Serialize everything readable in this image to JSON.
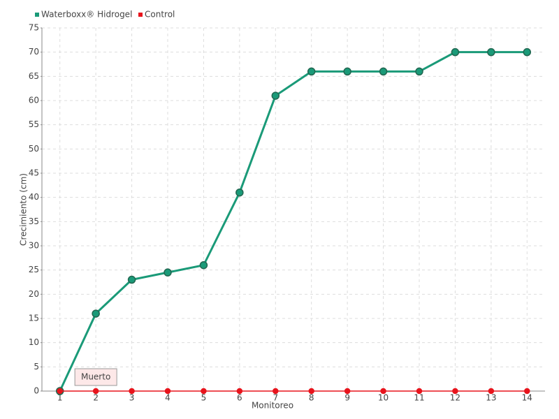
{
  "chart_data": {
    "type": "line",
    "x_label": "Monitoreo",
    "y_label": "Crecimiento (cm)",
    "categories": [
      "1",
      "2",
      "3",
      "4",
      "5",
      "6",
      "7",
      "8",
      "9",
      "10",
      "11",
      "12",
      "13",
      "14"
    ],
    "series": [
      {
        "name": "Waterboxx® Hidrogel",
        "color": "#1a9a78",
        "values": [
          0,
          16,
          23,
          24.5,
          26,
          41,
          61,
          66,
          66,
          66,
          66,
          70,
          70,
          70
        ]
      },
      {
        "name": "Control",
        "color": "#e8141c",
        "values": [
          0,
          0,
          0,
          0,
          0,
          0,
          0,
          0,
          0,
          0,
          0,
          0,
          0,
          0
        ]
      }
    ],
    "annotation": {
      "text": "Muerto",
      "category": "2"
    },
    "ylim": [
      0,
      75
    ],
    "yticks": [
      0,
      5,
      10,
      15,
      20,
      25,
      30,
      35,
      40,
      45,
      50,
      55,
      60,
      65,
      70,
      75
    ],
    "grid": true,
    "legend": "top-left"
  }
}
